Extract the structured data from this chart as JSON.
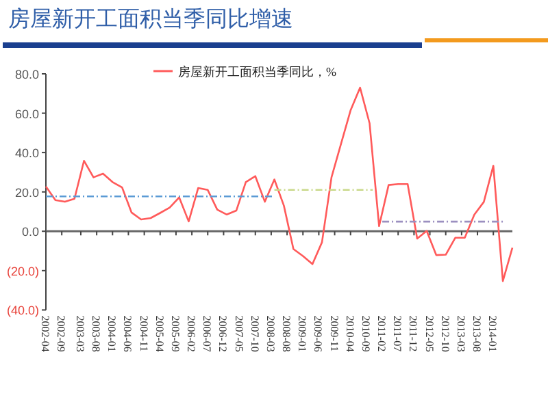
{
  "chart_data": {
    "type": "line",
    "title": "房屋新开工面积当季同比增速",
    "x": [
      "2002-04",
      "2002-07",
      "2002-10",
      "2003-01",
      "2003-04",
      "2003-07",
      "2003-10",
      "2004-01",
      "2004-04",
      "2004-07",
      "2004-10",
      "2005-01",
      "2005-04",
      "2005-07",
      "2005-10",
      "2006-01",
      "2006-04",
      "2006-07",
      "2006-10",
      "2007-01",
      "2007-04",
      "2007-07",
      "2007-10",
      "2008-01",
      "2008-04",
      "2008-07",
      "2008-10",
      "2009-01",
      "2009-04",
      "2009-07",
      "2009-10",
      "2010-01",
      "2010-04",
      "2010-07",
      "2010-10",
      "2011-01",
      "2011-04",
      "2011-07",
      "2011-10",
      "2012-01",
      "2012-04",
      "2012-07",
      "2012-10",
      "2013-01",
      "2013-04",
      "2013-07",
      "2013-10",
      "2014-01",
      "2014-04",
      "2014-07"
    ],
    "series": [
      {
        "name": "房屋新开工面积当季同比，%",
        "color": "#ff5a5a",
        "values": [
          22.8,
          15.8,
          15,
          16.5,
          35.8,
          27.4,
          29.3,
          25,
          22.3,
          9.5,
          6,
          6.7,
          9.3,
          12,
          17.2,
          5,
          22,
          21,
          11,
          8.5,
          10.5,
          25,
          28,
          15,
          26.3,
          13,
          -9,
          -12.6,
          -16.7,
          -5.6,
          27.4,
          44.4,
          61.4,
          73,
          54.9,
          2.6,
          23.5,
          24,
          24,
          -3.7,
          0.2,
          -12.1,
          -11.9,
          -3.3,
          -3.3,
          8.4,
          14.9,
          33.3,
          -25.3,
          -8.4
        ]
      },
      {
        "type": "line",
        "line_style": "dashed",
        "color": "#5b9bd5",
        "x": [
          "2002-04",
          "2008-04"
        ],
        "values": [
          17.7,
          17.7
        ]
      },
      {
        "type": "line",
        "line_style": "dashed",
        "color": "#c9d98a",
        "x": [
          "2008-04",
          "2010-11"
        ],
        "values": [
          21,
          21
        ]
      },
      {
        "type": "line",
        "line_style": "dashed",
        "color": "#9b8fc0",
        "x": [
          "2011-02",
          "2014-04"
        ],
        "values": [
          4.9,
          4.9
        ]
      }
    ],
    "xlim": [
      "2002-04",
      "2014-07"
    ],
    "xticks": [
      "2002-04",
      "2002-09",
      "2003-03",
      "2003-08",
      "2004-01",
      "2004-06",
      "2004-11",
      "2005-04",
      "2005-09",
      "2006-02",
      "2006-07",
      "2006-12",
      "2007-05",
      "2007-10",
      "2008-03",
      "2008-08",
      "2009-01",
      "2009-06",
      "2009-11",
      "2010-04",
      "2010-09",
      "2011-02",
      "2011-07",
      "2011-12",
      "2012-05",
      "2012-10",
      "2013-03",
      "2013-08",
      "2014-01"
    ],
    "ylim": [
      -40,
      80
    ],
    "yticks": [
      {
        "value": -40,
        "label": "(40.0)"
      },
      {
        "value": -20,
        "label": "(20.0)"
      },
      {
        "value": 0,
        "label": "0.0"
      },
      {
        "value": 20,
        "label": "20.0"
      },
      {
        "value": 40,
        "label": "40.0"
      },
      {
        "value": 60,
        "label": "60.0"
      },
      {
        "value": 80,
        "label": "80.0"
      }
    ],
    "legend": "top",
    "marker": "none",
    "line_style": "solid"
  }
}
